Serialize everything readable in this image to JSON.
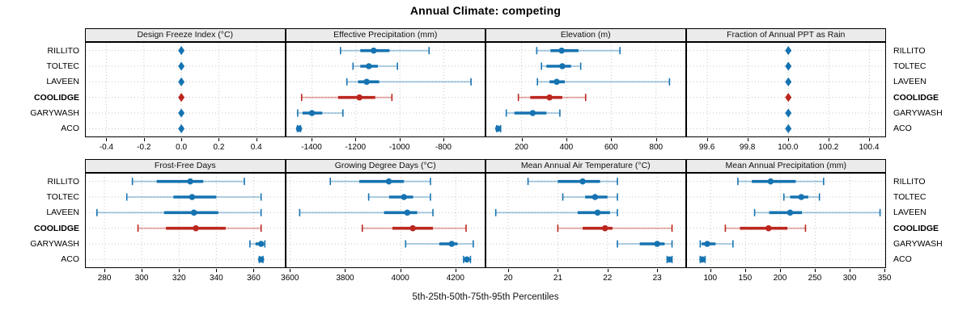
{
  "title": "Annual Climate: competing",
  "caption": "5th-25th-50th-75th-95th Percentiles",
  "sites": [
    "RILLITO",
    "TOLTEC",
    "LAVEEN",
    "COOLIDGE",
    "GARYWASH",
    "ACO"
  ],
  "highlight_site": "COOLIDGE",
  "percentile_levels": [
    "5th",
    "25th",
    "50th",
    "75th",
    "95th"
  ],
  "colors": {
    "series_default": "#1673b1",
    "series_highlight": "#bb271f",
    "header_bg": "#ebebeb",
    "grid": "#c6c6c6",
    "border": "#000000",
    "text": "#000000"
  },
  "chart_data": {
    "type": "trellis-percentile-dotplot",
    "layout": {
      "rows": 2,
      "cols": 4
    },
    "grid": "dotted",
    "panels": [
      {
        "title": "Design Freeze Index (°C)",
        "xlim": [
          -0.51,
          0.55
        ],
        "tick_values": [
          -0.4,
          -0.2,
          0.0,
          0.2,
          0.4
        ],
        "tick_labels": [
          "-0.4",
          "-0.2",
          "0.0",
          "0.2",
          "0.4"
        ],
        "series": [
          {
            "site": "RILLITO",
            "p": [
              0,
              0,
              0,
              0,
              0
            ]
          },
          {
            "site": "TOLTEC",
            "p": [
              0,
              0,
              0,
              0,
              0
            ]
          },
          {
            "site": "LAVEEN",
            "p": [
              0,
              0,
              0,
              0,
              0
            ]
          },
          {
            "site": "COOLIDGE",
            "p": [
              0,
              0,
              0,
              0,
              0
            ]
          },
          {
            "site": "GARYWASH",
            "p": [
              0,
              0,
              0,
              0,
              0
            ]
          },
          {
            "site": "ACO",
            "p": [
              0,
              0,
              0,
              0,
              0
            ]
          }
        ]
      },
      {
        "title": "Effective Precipitation (mm)",
        "xlim": [
          -1516,
          -612
        ],
        "tick_values": [
          -1400,
          -1200,
          -1000,
          -800
        ],
        "tick_labels": [
          "-1400",
          "-1200",
          "-1000",
          "-800"
        ],
        "series": [
          {
            "site": "RILLITO",
            "p": [
              -1270,
              -1180,
              -1119,
              -1047,
              -867
            ]
          },
          {
            "site": "TOLTEC",
            "p": [
              -1213,
              -1180,
              -1141,
              -1100,
              -1011
            ]
          },
          {
            "site": "LAVEEN",
            "p": [
              -1241,
              -1190,
              -1151,
              -1094,
              -676
            ]
          },
          {
            "site": "COOLIDGE",
            "p": [
              -1447,
              -1281,
              -1184,
              -1112,
              -1036
            ]
          },
          {
            "site": "GARYWASH",
            "p": [
              -1465,
              -1443,
              -1400,
              -1353,
              -1259
            ]
          },
          {
            "site": "ACO",
            "p": [
              -1466,
              -1462,
              -1459,
              -1456,
              -1452
            ]
          }
        ]
      },
      {
        "title": "Elevation (m)",
        "xlim": [
          43,
          929
        ],
        "tick_values": [
          200,
          400,
          600,
          800
        ],
        "tick_labels": [
          "200",
          "400",
          "600",
          "800"
        ],
        "series": [
          {
            "site": "RILLITO",
            "p": [
              268,
              329,
              379,
              454,
              639
            ]
          },
          {
            "site": "TOLTEC",
            "p": [
              289,
              311,
              382,
              421,
              464
            ]
          },
          {
            "site": "LAVEEN",
            "p": [
              271,
              325,
              357,
              393,
              860
            ]
          },
          {
            "site": "COOLIDGE",
            "p": [
              186,
              239,
              325,
              382,
              486
            ]
          },
          {
            "site": "GARYWASH",
            "p": [
              132,
              168,
              250,
              311,
              371
            ]
          },
          {
            "site": "ACO",
            "p": [
              89,
              93,
              96,
              100,
              107
            ]
          }
        ]
      },
      {
        "title": "Fraction of Annual PPT as Rain",
        "xlim": [
          99.5,
          100.48
        ],
        "tick_values": [
          99.6,
          99.8,
          100.0,
          100.2,
          100.4
        ],
        "tick_labels": [
          "99.6",
          "99.8",
          "100.0",
          "100.2",
          "100.4"
        ],
        "series": [
          {
            "site": "RILLITO",
            "p": [
              100,
              100,
              100,
              100,
              100
            ]
          },
          {
            "site": "TOLTEC",
            "p": [
              100,
              100,
              100,
              100,
              100
            ]
          },
          {
            "site": "LAVEEN",
            "p": [
              100,
              100,
              100,
              100,
              100
            ]
          },
          {
            "site": "COOLIDGE",
            "p": [
              100,
              100,
              100,
              100,
              100
            ]
          },
          {
            "site": "GARYWASH",
            "p": [
              100,
              100,
              100,
              100,
              100
            ]
          },
          {
            "site": "ACO",
            "p": [
              100,
              100,
              100,
              100,
              100
            ]
          }
        ]
      },
      {
        "title": "Frost-Free Days",
        "xlim": [
          270,
          376.5
        ],
        "tick_values": [
          280,
          300,
          320,
          340,
          360
        ],
        "tick_labels": [
          "280",
          "300",
          "320",
          "340",
          "360"
        ],
        "series": [
          {
            "site": "RILLITO",
            "p": [
              295,
              308,
              326,
              333,
              355
            ]
          },
          {
            "site": "TOLTEC",
            "p": [
              292,
              317,
              327,
              340,
              364
            ]
          },
          {
            "site": "LAVEEN",
            "p": [
              276,
              312,
              328,
              341,
              364
            ]
          },
          {
            "site": "COOLIDGE",
            "p": [
              298,
              313,
              329,
              345,
              364
            ]
          },
          {
            "site": "GARYWASH",
            "p": [
              358,
              361,
              364,
              365,
              366
            ]
          },
          {
            "site": "ACO",
            "p": [
              363,
              363.5,
              364,
              364.5,
              365
            ]
          }
        ]
      },
      {
        "title": "Growing Degree Days (°C)",
        "xlim": [
          3586,
          4306
        ],
        "tick_values": [
          3600,
          3800,
          4000,
          4200
        ],
        "tick_labels": [
          "3600",
          "3800",
          "4000",
          "4200"
        ],
        "series": [
          {
            "site": "RILLITO",
            "p": [
              3745,
              3850,
              3957,
              4012,
              4108
            ]
          },
          {
            "site": "TOLTEC",
            "p": [
              3884,
              3958,
              4012,
              4045,
              4108
            ]
          },
          {
            "site": "LAVEEN",
            "p": [
              3634,
              3940,
              4024,
              4060,
              4117
            ]
          },
          {
            "site": "COOLIDGE",
            "p": [
              3861,
              3970,
              4044,
              4117,
              4237
            ]
          },
          {
            "site": "GARYWASH",
            "p": [
              4018,
              4140,
              4185,
              4206,
              4263
            ]
          },
          {
            "site": "ACO",
            "p": [
              4228,
              4235,
              4240,
              4246,
              4253
            ]
          }
        ]
      },
      {
        "title": "Mean Annual Air Temperature (°C)",
        "xlim": [
          19.56,
          23.56
        ],
        "tick_values": [
          20,
          21,
          22,
          23
        ],
        "tick_labels": [
          "20",
          "21",
          "22",
          "23"
        ],
        "series": [
          {
            "site": "RILLITO",
            "p": [
              20.4,
              21.0,
              21.5,
              21.85,
              22.2
            ]
          },
          {
            "site": "TOLTEC",
            "p": [
              21.1,
              21.55,
              21.75,
              22.0,
              22.2
            ]
          },
          {
            "site": "LAVEEN",
            "p": [
              19.75,
              21.4,
              21.8,
              22.05,
              22.2
            ]
          },
          {
            "site": "COOLIDGE",
            "p": [
              21.0,
              21.5,
              21.95,
              22.1,
              23.3
            ]
          },
          {
            "site": "GARYWASH",
            "p": [
              22.2,
              22.65,
              23.0,
              23.15,
              23.3
            ]
          },
          {
            "site": "ACO",
            "p": [
              23.2,
              23.22,
              23.25,
              23.28,
              23.3
            ]
          }
        ]
      },
      {
        "title": "Mean Annual Precipitation (mm)",
        "xlim": [
          66,
          351
        ],
        "tick_values": [
          100,
          150,
          200,
          250,
          300,
          350
        ],
        "tick_labels": [
          "100",
          "150",
          "200",
          "250",
          "300",
          "350"
        ],
        "series": [
          {
            "site": "RILLITO",
            "p": [
              139,
              159,
              186,
              222,
              262
            ]
          },
          {
            "site": "TOLTEC",
            "p": [
              205,
              214,
              230,
              240,
              256
            ]
          },
          {
            "site": "LAVEEN",
            "p": [
              163,
              184,
              214,
              231,
              343
            ]
          },
          {
            "site": "COOLIDGE",
            "p": [
              121,
              142,
              183,
              210,
              236
            ]
          },
          {
            "site": "GARYWASH",
            "p": [
              85,
              87,
              95,
              107,
              132
            ]
          },
          {
            "site": "ACO",
            "p": [
              85,
              87,
              88,
              90,
              92
            ]
          }
        ]
      }
    ]
  }
}
